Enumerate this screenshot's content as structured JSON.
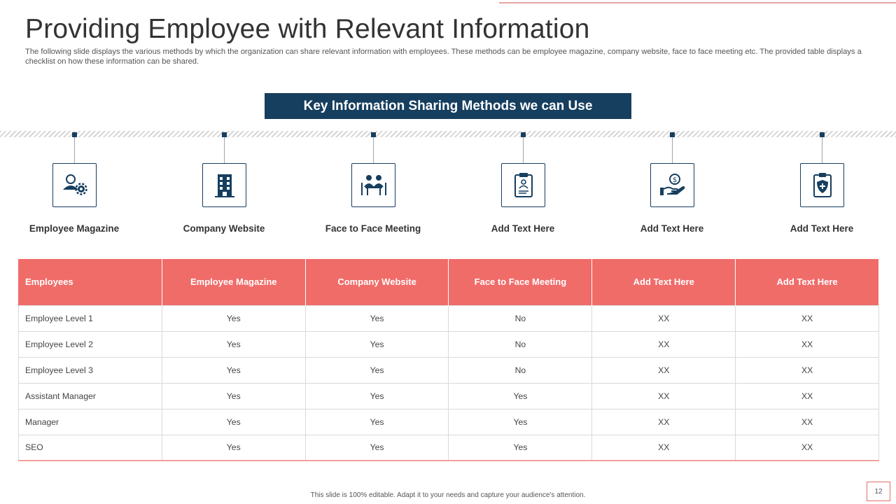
{
  "slide": {
    "title": "Providing Employee with Relevant Information",
    "subtitle": "The following slide displays the various methods by which the organization can share relevant information with employees. These methods can  be employee magazine, company website, face to face meeting etc. The provided table displays a checklist on how these  information can be shared.",
    "section_label": "Key Information Sharing Methods we can Use",
    "footer": "This slide is 100% editable. Adapt it to your needs and capture your audience's attention.",
    "page_number": "12"
  },
  "methods": [
    {
      "label": "Employee Magazine",
      "icon": "person-gear-icon"
    },
    {
      "label": "Company Website",
      "icon": "building-icon"
    },
    {
      "label": "Face to Face Meeting",
      "icon": "meeting-table-icon"
    },
    {
      "label": "Add  Text Here",
      "icon": "clipboard-profile-icon"
    },
    {
      "label": "Add  Text Here",
      "icon": "hand-coin-icon"
    },
    {
      "label": "Add  Text Here",
      "icon": "clipboard-shield-icon"
    }
  ],
  "colors": {
    "navy": "#163e5f",
    "coral": "#f06c69"
  },
  "table": {
    "headers": [
      "Employees",
      "Employee Magazine",
      "Company Website",
      "Face to Face Meeting",
      "Add Text Here",
      "Add Text Here"
    ],
    "rows": [
      [
        "Employee Level 1",
        "Yes",
        "Yes",
        "No",
        "XX",
        "XX"
      ],
      [
        "Employee Level 2",
        "Yes",
        "Yes",
        "No",
        "XX",
        "XX"
      ],
      [
        "Employee Level 3",
        "Yes",
        "Yes",
        "No",
        "XX",
        "XX"
      ],
      [
        "Assistant Manager",
        "Yes",
        "Yes",
        "Yes",
        "XX",
        "XX"
      ],
      [
        "Manager",
        "Yes",
        "Yes",
        "Yes",
        "XX",
        "XX"
      ],
      [
        "SEO",
        "Yes",
        "Yes",
        "Yes",
        "XX",
        "XX"
      ]
    ]
  }
}
